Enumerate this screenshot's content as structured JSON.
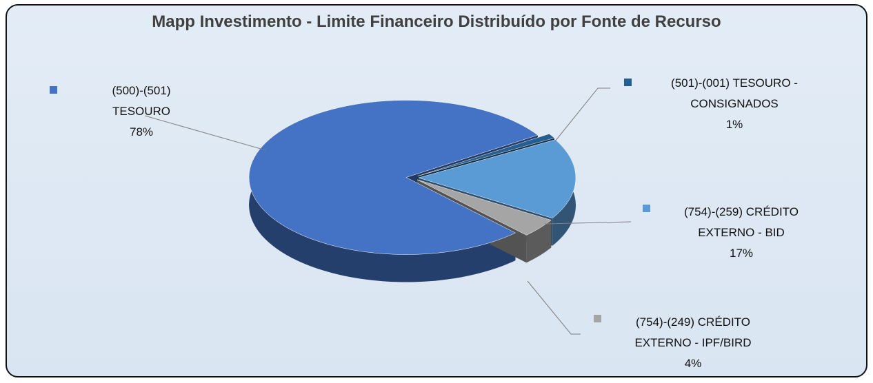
{
  "chart_data": {
    "type": "pie",
    "title": "Mapp Investimento - Limite Financeiro Distribuído por Fonte de Recurso",
    "categories": [
      "(500)-(501) TESOURO",
      "(501)-(001) TESOURO - CONSIGNADOS",
      "(754)-(259) CRÉDITO EXTERNO - BID",
      "(754)-(249) CRÉDITO EXTERNO - IPF/BIRD"
    ],
    "values": [
      78,
      1,
      17,
      4
    ],
    "value_labels": [
      "78%",
      "1%",
      "17%",
      "4%"
    ],
    "colors": [
      "#4472c4",
      "#255e91",
      "#5b9bd5",
      "#a5a5a5"
    ]
  }
}
